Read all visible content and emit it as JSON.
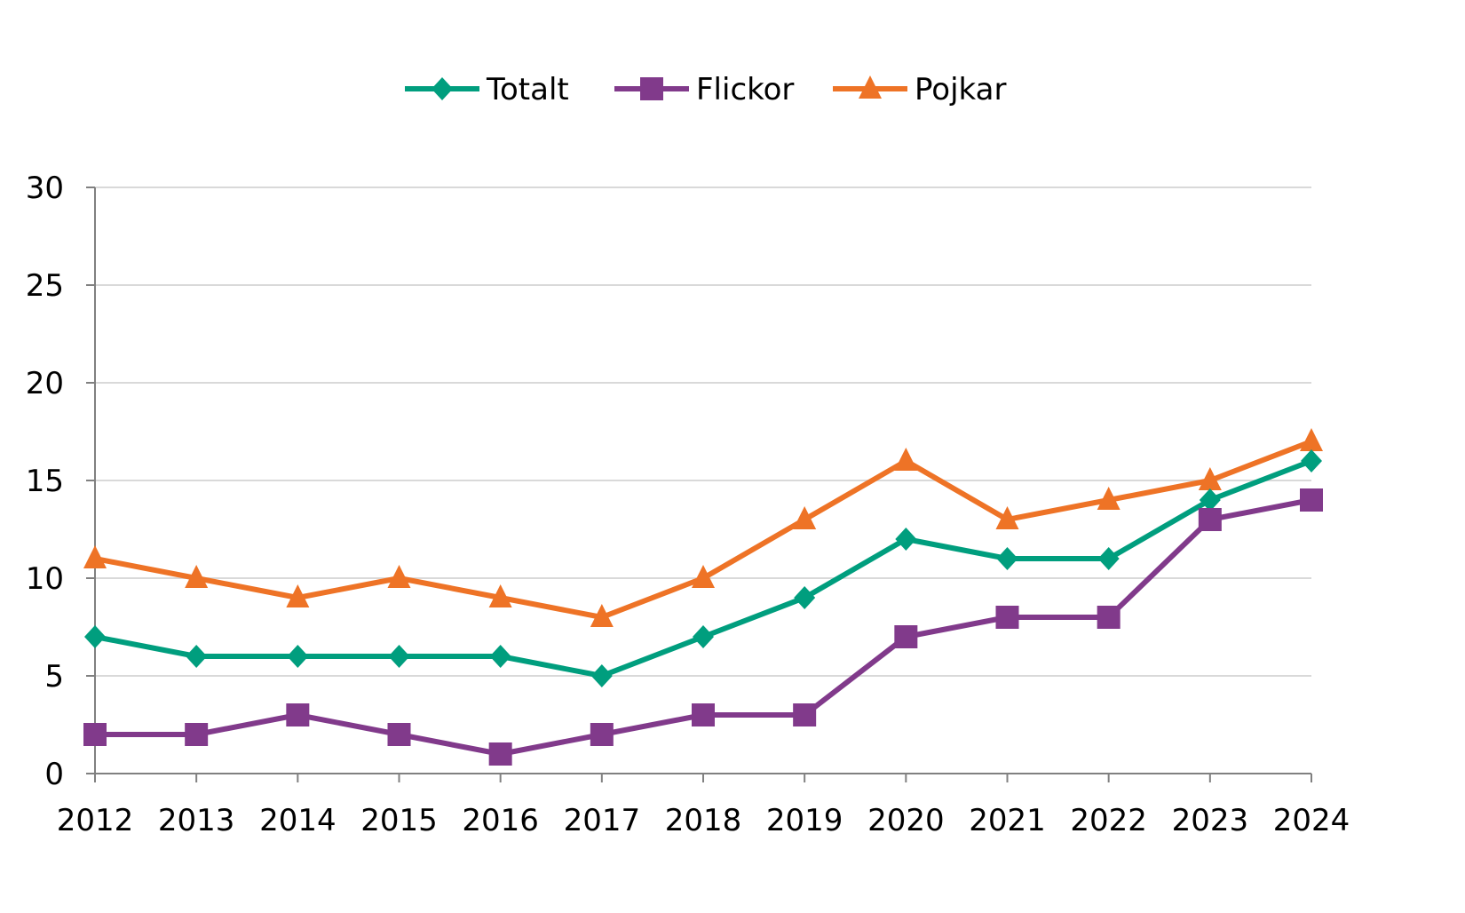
{
  "chart_data": {
    "type": "line",
    "title": "",
    "xlabel": "",
    "ylabel": "",
    "x": [
      "2012",
      "2013",
      "2014",
      "2015",
      "2016",
      "2017",
      "2018",
      "2019",
      "2020",
      "2021",
      "2022",
      "2023",
      "2024"
    ],
    "ylim": [
      0,
      30
    ],
    "yticks": [
      0,
      5,
      10,
      15,
      20,
      25,
      30
    ],
    "grid": true,
    "legend_position": "top",
    "series": [
      {
        "name": "Totalt",
        "color": "#009e7e",
        "marker": "diamond",
        "values": [
          7,
          6,
          6,
          6,
          6,
          5,
          7,
          9,
          12,
          11,
          11,
          14,
          16
        ]
      },
      {
        "name": "Flickor",
        "color": "#813a8b",
        "marker": "square",
        "values": [
          2,
          2,
          3,
          2,
          1,
          2,
          3,
          3,
          7,
          8,
          8,
          13,
          14
        ]
      },
      {
        "name": "Pojkar",
        "color": "#ee7326",
        "marker": "triangle",
        "values": [
          11,
          10,
          9,
          10,
          9,
          8,
          10,
          13,
          16,
          13,
          14,
          15,
          17
        ]
      }
    ]
  }
}
